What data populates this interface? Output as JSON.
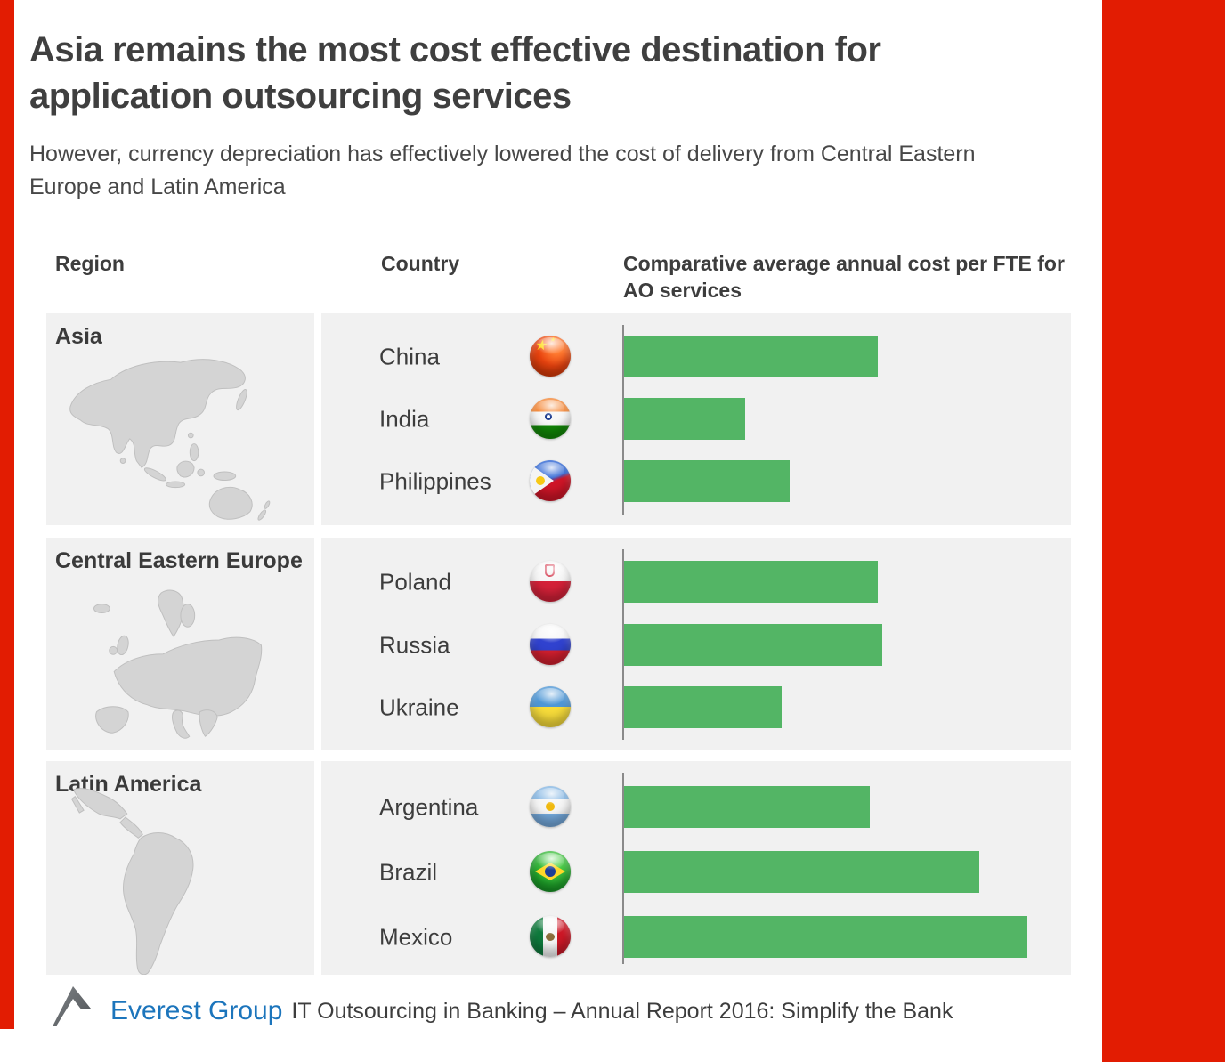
{
  "header": {
    "title": "Asia remains the most cost effective destination for application outsourcing services",
    "subtitle": "However, currency depreciation has effectively lowered the cost of delivery from Central Eastern Europe and Latin America"
  },
  "table": {
    "columns": [
      "Region",
      "Country",
      "Comparative average annual cost per FTE for AO services"
    ]
  },
  "sections": [
    {
      "region": "Asia",
      "map_icon": "asia-map",
      "rows": [
        {
          "country": "China",
          "flag_icon": "china-flag-icon",
          "value": 63
        },
        {
          "country": "India",
          "flag_icon": "india-flag-icon",
          "value": 30
        },
        {
          "country": "Philippines",
          "flag_icon": "philippines-flag-icon",
          "value": 41
        }
      ]
    },
    {
      "region": "Central Eastern Europe",
      "map_icon": "europe-map",
      "rows": [
        {
          "country": "Poland",
          "flag_icon": "poland-flag-icon",
          "value": 63
        },
        {
          "country": "Russia",
          "flag_icon": "russia-flag-icon",
          "value": 64
        },
        {
          "country": "Ukraine",
          "flag_icon": "ukraine-flag-icon",
          "value": 39
        }
      ]
    },
    {
      "region": "Latin America",
      "map_icon": "latin-america-map",
      "rows": [
        {
          "country": "Argentina",
          "flag_icon": "argentina-flag-icon",
          "value": 61
        },
        {
          "country": "Brazil",
          "flag_icon": "brazil-flag-icon",
          "value": 88
        },
        {
          "country": "Mexico",
          "flag_icon": "mexico-flag-icon",
          "value": 100
        }
      ]
    }
  ],
  "chart_data": {
    "type": "bar",
    "orientation": "horizontal",
    "title": "Comparative average annual cost per FTE for AO services",
    "value_scale": "relative index estimated from bar lengths; no numeric axis shown, longest bar (Mexico) = 100",
    "groups": [
      {
        "region": "Asia",
        "categories": [
          "China",
          "India",
          "Philippines"
        ],
        "values": [
          63,
          30,
          41
        ]
      },
      {
        "region": "Central Eastern Europe",
        "categories": [
          "Poland",
          "Russia",
          "Ukraine"
        ],
        "values": [
          63,
          64,
          39
        ]
      },
      {
        "region": "Latin America",
        "categories": [
          "Argentina",
          "Brazil",
          "Mexico"
        ],
        "values": [
          61,
          88,
          100
        ]
      }
    ],
    "legend": "none",
    "grid": "off",
    "bar_color": "#53b565"
  },
  "footer": {
    "brand": "Everest Group",
    "report": "IT Outsourcing in Banking – Annual Report 2016: Simplify the Bank"
  },
  "colors": {
    "accent_red": "#e21c02",
    "bar_green": "#53b565",
    "band_gray": "#f1f1f1",
    "map_gray": "#d4d4d4",
    "brand_blue": "#1c75bc",
    "title_gray": "#3f3f3f"
  }
}
